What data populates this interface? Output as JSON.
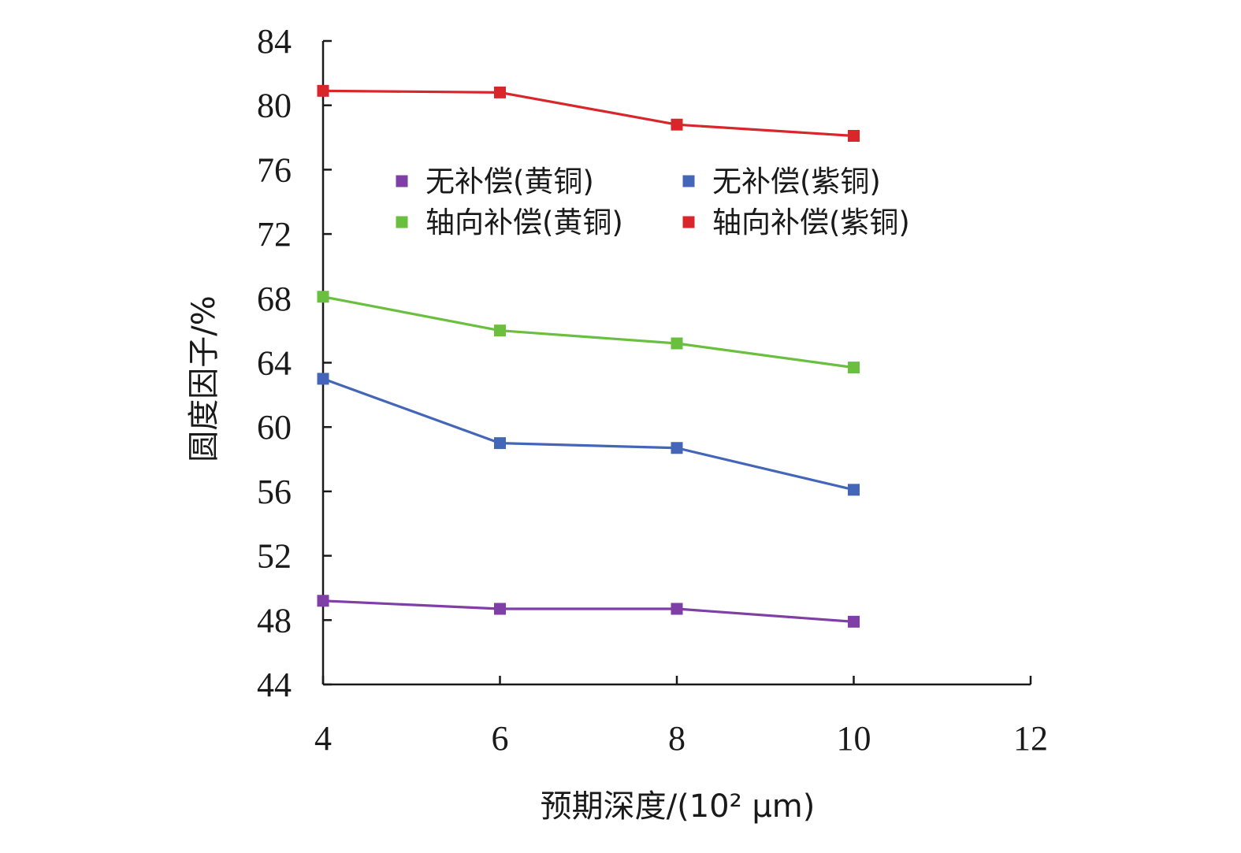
{
  "chart_data": {
    "type": "line",
    "title": "",
    "xlabel": "预期深度/(10² μm)",
    "ylabel": "圆度因子/%",
    "xlim": [
      4,
      12
    ],
    "ylim": [
      44,
      84
    ],
    "xticks": [
      4,
      6,
      8,
      10,
      12
    ],
    "yticks": [
      44,
      48,
      52,
      56,
      60,
      64,
      68,
      72,
      76,
      80,
      84
    ],
    "x": [
      4,
      6,
      8,
      10
    ],
    "grid": false,
    "legend_position": "top-center",
    "series": [
      {
        "name": "无补偿(黄铜)",
        "color": "#7f3fa6",
        "values": [
          49.2,
          48.7,
          48.7,
          47.9
        ]
      },
      {
        "name": "无补偿(紫铜)",
        "color": "#4466b8",
        "values": [
          63.0,
          59.0,
          58.7,
          56.1
        ]
      },
      {
        "name": "轴向补偿(黄铜)",
        "color": "#6abf3f",
        "values": [
          68.1,
          66.0,
          65.2,
          63.7
        ]
      },
      {
        "name": "轴向补偿(紫铜)",
        "color": "#d9262b",
        "values": [
          80.9,
          80.8,
          78.8,
          78.1
        ]
      }
    ]
  }
}
